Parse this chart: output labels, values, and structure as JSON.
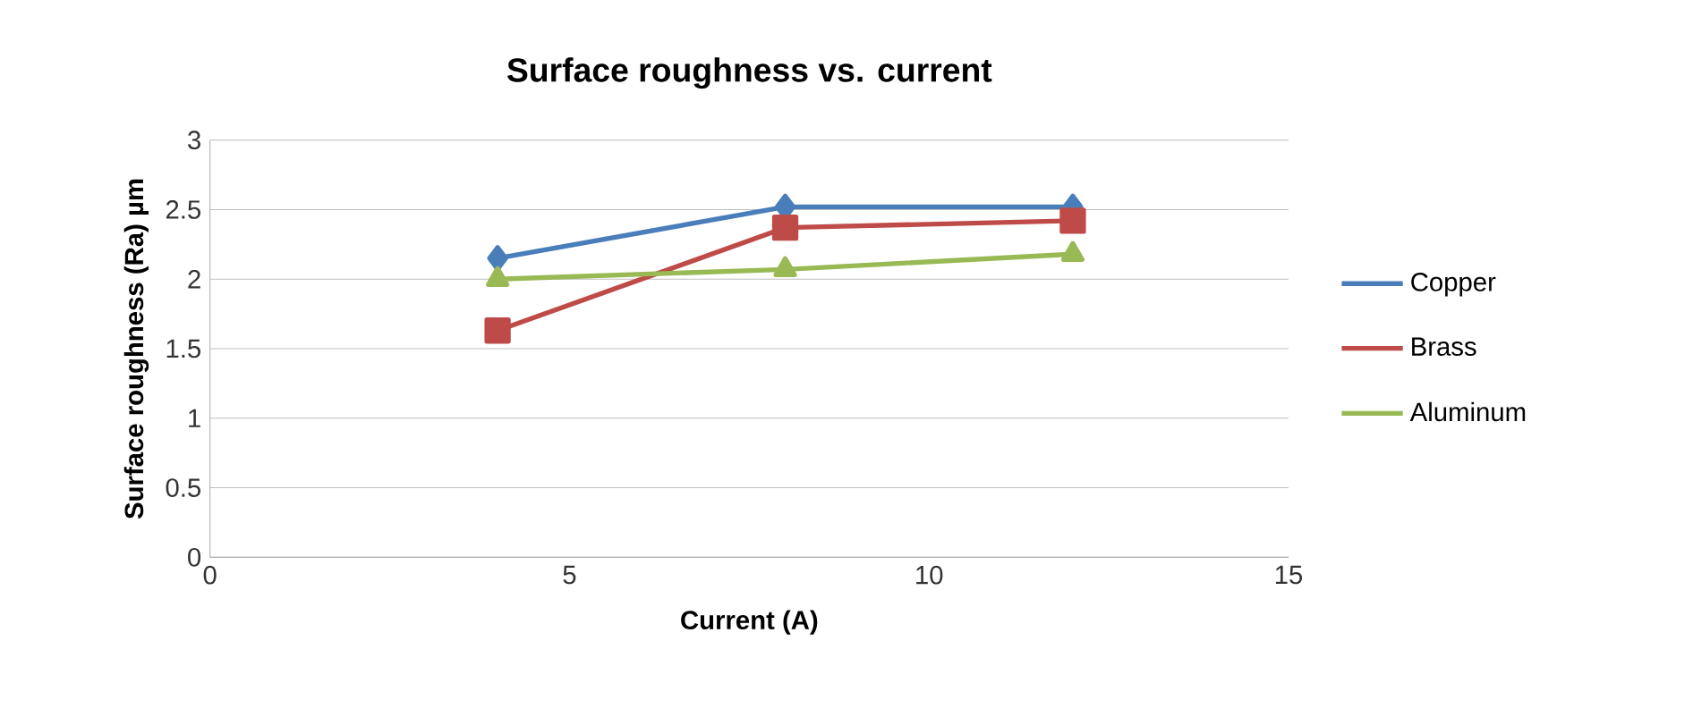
{
  "chart_data": {
    "type": "line",
    "title": "Surface roughness vs. current",
    "xlabel": "Current  (A)",
    "ylabel": "Surface roughness (Ra) µm",
    "x": [
      4,
      8,
      12
    ],
    "series": [
      {
        "name": "Copper",
        "color": "#4a7ebb",
        "marker": "diamond",
        "values": [
          2.15,
          2.52,
          2.52
        ]
      },
      {
        "name": "Brass",
        "color": "#be4b48",
        "marker": "square",
        "values": [
          1.63,
          2.37,
          2.42
        ]
      },
      {
        "name": "Aluminum",
        "color": "#98b954",
        "marker": "triangle",
        "values": [
          2.0,
          2.07,
          2.18
        ]
      }
    ],
    "xlim": [
      0,
      15
    ],
    "xticks": [
      0,
      5,
      10,
      15
    ],
    "ylim": [
      0,
      3
    ],
    "yticks": [
      0,
      0.5,
      1,
      1.5,
      2,
      2.5,
      3
    ],
    "grid": "y",
    "legend": "right"
  }
}
